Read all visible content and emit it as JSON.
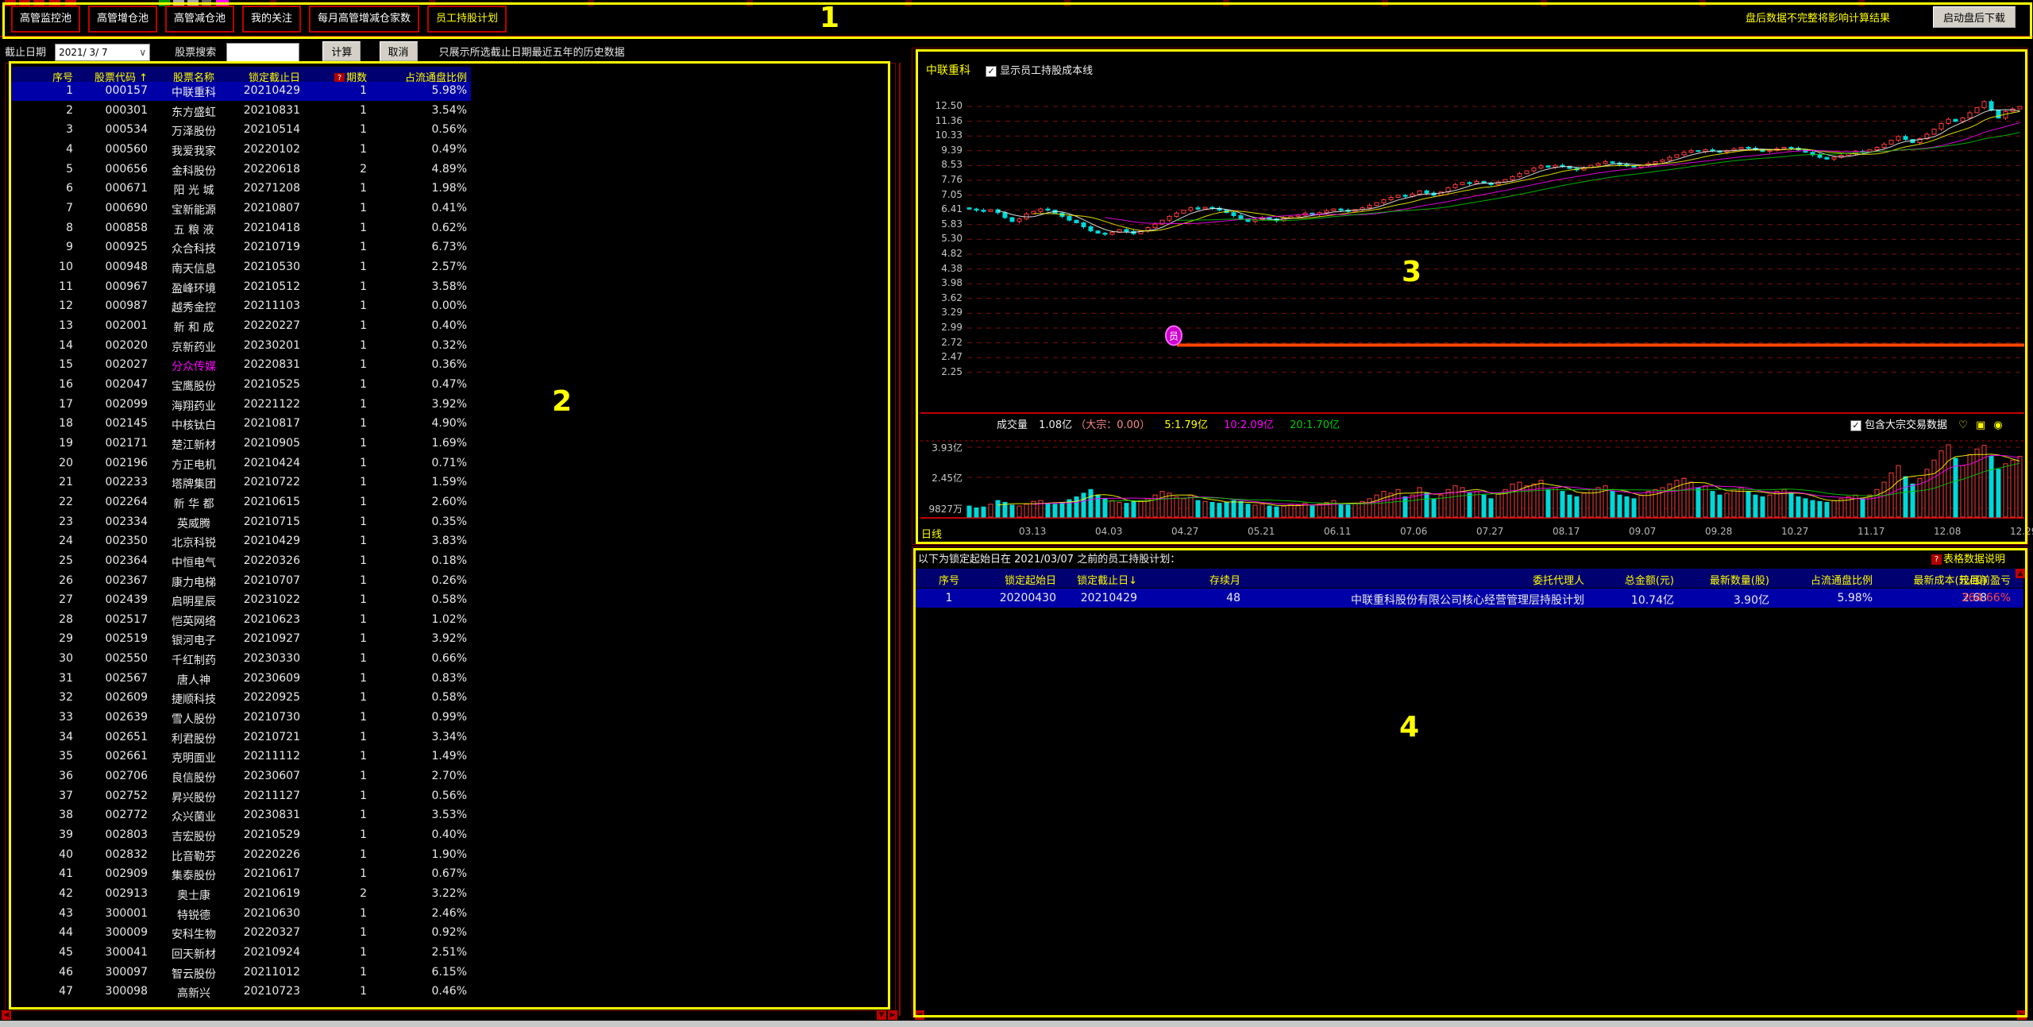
{
  "toolbar": {
    "tabs": [
      "高管监控池",
      "高管增仓池",
      "高管减仓池",
      "我的关注",
      "每月高管增减仓家数",
      "员工持股计划"
    ],
    "active_tab": "员工持股计划",
    "warning": "盘后数据不完整将影响计算结果",
    "download_button": "启动盘后下载"
  },
  "filter_bar": {
    "date_label": "截止日期",
    "date_value": "2021/ 3/ 7",
    "search_label": "股票搜索",
    "search_value": "",
    "calc_button": "计算",
    "cancel_button": "取消",
    "note": "只展示所选截止日期最近五年的历史数据"
  },
  "stock_table": {
    "headers": [
      "序号",
      "股票代码",
      "股票名称",
      "锁定截止日",
      "期数",
      "占流通盘比例"
    ],
    "sort_arrow_col": "股票代码",
    "help_icon_col": "期数",
    "selected_index": 0,
    "magenta_rows": [
      14
    ],
    "rows": [
      [
        "1",
        "000157",
        "中联重科",
        "20210429",
        "1",
        "5.98%"
      ],
      [
        "2",
        "000301",
        "东方盛虹",
        "20210831",
        "1",
        "3.54%"
      ],
      [
        "3",
        "000534",
        "万泽股份",
        "20210514",
        "1",
        "0.56%"
      ],
      [
        "4",
        "000560",
        "我爱我家",
        "20220102",
        "1",
        "0.49%"
      ],
      [
        "5",
        "000656",
        "金科股份",
        "20220618",
        "2",
        "4.89%"
      ],
      [
        "6",
        "000671",
        "阳 光 城",
        "20271208",
        "1",
        "1.98%"
      ],
      [
        "7",
        "000690",
        "宝新能源",
        "20210807",
        "1",
        "0.41%"
      ],
      [
        "8",
        "000858",
        "五 粮 液",
        "20210418",
        "1",
        "0.62%"
      ],
      [
        "9",
        "000925",
        "众合科技",
        "20210719",
        "1",
        "6.73%"
      ],
      [
        "10",
        "000948",
        "南天信息",
        "20210530",
        "1",
        "2.57%"
      ],
      [
        "11",
        "000967",
        "盈峰环境",
        "20210512",
        "1",
        "3.58%"
      ],
      [
        "12",
        "000987",
        "越秀金控",
        "20211103",
        "1",
        "0.00%"
      ],
      [
        "13",
        "002001",
        "新 和 成",
        "20220227",
        "1",
        "0.40%"
      ],
      [
        "14",
        "002020",
        "京新药业",
        "20230201",
        "1",
        "0.32%"
      ],
      [
        "15",
        "002027",
        "分众传媒",
        "20220831",
        "1",
        "0.36%"
      ],
      [
        "16",
        "002047",
        "宝鹰股份",
        "20210525",
        "1",
        "0.47%"
      ],
      [
        "17",
        "002099",
        "海翔药业",
        "20221122",
        "1",
        "3.92%"
      ],
      [
        "18",
        "002145",
        "中核钛白",
        "20210817",
        "1",
        "4.90%"
      ],
      [
        "19",
        "002171",
        "楚江新材",
        "20210905",
        "1",
        "1.69%"
      ],
      [
        "20",
        "002196",
        "方正电机",
        "20210424",
        "1",
        "0.71%"
      ],
      [
        "21",
        "002233",
        "塔牌集团",
        "20210722",
        "1",
        "1.59%"
      ],
      [
        "22",
        "002264",
        "新 华 都",
        "20210615",
        "1",
        "2.60%"
      ],
      [
        "23",
        "002334",
        "英威腾",
        "20210715",
        "1",
        "0.35%"
      ],
      [
        "24",
        "002350",
        "北京科锐",
        "20210429",
        "1",
        "3.83%"
      ],
      [
        "25",
        "002364",
        "中恒电气",
        "20220326",
        "1",
        "0.18%"
      ],
      [
        "26",
        "002367",
        "康力电梯",
        "20210707",
        "1",
        "0.26%"
      ],
      [
        "27",
        "002439",
        "启明星辰",
        "20231022",
        "1",
        "0.58%"
      ],
      [
        "28",
        "002517",
        "恺英网络",
        "20210623",
        "1",
        "1.02%"
      ],
      [
        "29",
        "002519",
        "银河电子",
        "20210927",
        "1",
        "3.92%"
      ],
      [
        "30",
        "002550",
        "千红制药",
        "20230330",
        "1",
        "0.66%"
      ],
      [
        "31",
        "002567",
        "唐人神",
        "20230609",
        "1",
        "0.83%"
      ],
      [
        "32",
        "002609",
        "捷顺科技",
        "20220925",
        "1",
        "0.58%"
      ],
      [
        "33",
        "002639",
        "雪人股份",
        "20210730",
        "1",
        "0.99%"
      ],
      [
        "34",
        "002651",
        "利君股份",
        "20210721",
        "1",
        "3.34%"
      ],
      [
        "35",
        "002661",
        "克明面业",
        "20211112",
        "1",
        "1.49%"
      ],
      [
        "36",
        "002706",
        "良信股份",
        "20230607",
        "1",
        "2.70%"
      ],
      [
        "37",
        "002752",
        "昇兴股份",
        "20211127",
        "1",
        "0.56%"
      ],
      [
        "38",
        "002772",
        "众兴菌业",
        "20230831",
        "1",
        "3.53%"
      ],
      [
        "39",
        "002803",
        "吉宏股份",
        "20210529",
        "1",
        "0.40%"
      ],
      [
        "40",
        "002832",
        "比音勒芬",
        "20220226",
        "1",
        "1.90%"
      ],
      [
        "41",
        "002909",
        "集泰股份",
        "20210617",
        "1",
        "0.67%"
      ],
      [
        "42",
        "002913",
        "奥士康",
        "20210619",
        "2",
        "3.22%"
      ],
      [
        "43",
        "300001",
        "特锐德",
        "20210630",
        "1",
        "2.46%"
      ],
      [
        "44",
        "300009",
        "安科生物",
        "20220327",
        "1",
        "0.92%"
      ],
      [
        "45",
        "300041",
        "回天新材",
        "20210924",
        "1",
        "2.51%"
      ],
      [
        "46",
        "300097",
        "智云股份",
        "20211012",
        "1",
        "6.15%"
      ],
      [
        "47",
        "300098",
        "高新兴",
        "20210723",
        "1",
        "0.46%"
      ]
    ]
  },
  "chart": {
    "title": "中联重科",
    "overlay_checkbox": "显示员工持股成本线",
    "y_labels": [
      "12.50",
      "11.36",
      "10.33",
      "9.39",
      "8.53",
      "7.76",
      "7.05",
      "6.41",
      "5.83",
      "5.30",
      "4.82",
      "4.38",
      "3.98",
      "3.62",
      "3.29",
      "2.99",
      "2.72",
      "2.47",
      "2.25"
    ],
    "volume_row": {
      "label": "成交量",
      "value": "1.08亿",
      "block": "（大宗：0.00）",
      "ma5": "5:1.79亿",
      "ma10": "10:2.09亿",
      "ma20": "20:1.70亿"
    },
    "volume_checkbox": "包含大宗交易数据",
    "vol_labels": [
      "3.93亿",
      "2.45亿",
      "9827万"
    ],
    "period_label": "日线",
    "x_labels": [
      "03.13",
      "04.03",
      "04.27",
      "05.21",
      "06.11",
      "07.06",
      "07.27",
      "08.17",
      "09.07",
      "09.28",
      "10.27",
      "11.17",
      "12.08",
      "12.29"
    ],
    "cost_marker": "员"
  },
  "chart_data": {
    "type": "candlestick",
    "title": "中联重科 日线",
    "y_axis_prices": [
      12.5,
      11.36,
      10.33,
      9.39,
      8.53,
      7.76,
      7.05,
      6.41,
      5.83,
      5.3,
      4.82,
      4.38,
      3.98,
      3.62,
      3.29,
      2.99,
      2.72,
      2.47,
      2.25
    ],
    "cost_line_price": 2.68,
    "volume_max_yi": 3.93,
    "closes": [
      6.45,
      6.4,
      6.35,
      6.42,
      6.3,
      6.1,
      5.95,
      6.05,
      6.25,
      6.35,
      6.45,
      6.4,
      6.28,
      6.15,
      6.0,
      5.9,
      5.75,
      5.6,
      5.52,
      5.48,
      5.55,
      5.65,
      5.58,
      5.5,
      5.6,
      5.72,
      5.85,
      6.0,
      6.15,
      6.28,
      6.4,
      6.5,
      6.45,
      6.52,
      6.48,
      6.4,
      6.3,
      6.18,
      6.05,
      5.95,
      6.02,
      6.1,
      6.05,
      5.98,
      6.08,
      6.15,
      6.2,
      6.28,
      6.22,
      6.3,
      6.38,
      6.45,
      6.4,
      6.35,
      6.42,
      6.5,
      6.6,
      6.72,
      6.85,
      6.95,
      7.05,
      7.0,
      7.1,
      7.25,
      7.15,
      7.05,
      7.2,
      7.4,
      7.55,
      7.65,
      7.6,
      7.7,
      7.62,
      7.55,
      7.68,
      7.8,
      7.95,
      8.1,
      8.25,
      8.4,
      8.52,
      8.45,
      8.55,
      8.48,
      8.38,
      8.3,
      8.42,
      8.55,
      8.65,
      8.75,
      8.68,
      8.6,
      8.52,
      8.45,
      8.55,
      8.65,
      8.75,
      8.85,
      9.0,
      9.15,
      9.3,
      9.4,
      9.35,
      9.45,
      9.38,
      9.3,
      9.4,
      9.5,
      9.6,
      9.55,
      9.45,
      9.35,
      9.42,
      9.52,
      9.6,
      9.55,
      9.45,
      9.3,
      9.15,
      9.0,
      8.9,
      9.0,
      9.12,
      9.25,
      9.35,
      9.3,
      9.45,
      9.6,
      9.8,
      10.05,
      10.3,
      10.1,
      9.9,
      10.15,
      10.45,
      10.8,
      11.2,
      11.5,
      11.35,
      11.6,
      12.0,
      12.4,
      12.9,
      12.2,
      11.6,
      12.1,
      12.3,
      12.5
    ],
    "volumes_yi": [
      0.6,
      0.5,
      0.55,
      0.7,
      0.9,
      0.8,
      0.65,
      0.6,
      0.7,
      0.85,
      0.9,
      0.75,
      0.7,
      0.8,
      0.95,
      1.1,
      1.3,
      1.5,
      1.2,
      1.0,
      0.9,
      0.8,
      0.75,
      0.85,
      0.9,
      1.0,
      1.2,
      1.4,
      1.3,
      1.1,
      1.0,
      1.2,
      0.9,
      0.85,
      0.8,
      0.75,
      0.8,
      0.9,
      0.85,
      0.7,
      0.65,
      0.7,
      0.6,
      0.55,
      0.6,
      0.7,
      0.65,
      0.75,
      0.6,
      0.7,
      0.8,
      0.9,
      0.7,
      0.65,
      0.75,
      0.85,
      1.0,
      1.2,
      1.4,
      1.3,
      1.5,
      1.1,
      1.2,
      1.6,
      1.3,
      1.0,
      1.2,
      1.5,
      1.7,
      1.6,
      1.3,
      1.4,
      1.2,
      1.0,
      1.3,
      1.5,
      1.8,
      1.9,
      1.7,
      1.8,
      2.0,
      1.5,
      1.6,
      1.4,
      1.2,
      1.1,
      1.3,
      1.5,
      1.6,
      1.7,
      1.4,
      1.2,
      1.1,
      1.0,
      1.2,
      1.4,
      1.5,
      1.6,
      1.8,
      2.0,
      2.1,
      1.9,
      1.6,
      1.7,
      1.4,
      1.2,
      1.3,
      1.5,
      1.6,
      1.4,
      1.2,
      1.1,
      1.2,
      1.4,
      1.5,
      1.3,
      1.1,
      1.0,
      0.9,
      0.85,
      0.8,
      0.9,
      1.0,
      1.1,
      1.2,
      1.0,
      1.2,
      1.5,
      1.9,
      2.4,
      2.8,
      2.2,
      1.8,
      2.1,
      2.6,
      3.1,
      3.6,
      3.93,
      3.2,
      2.8,
      3.4,
      3.7,
      3.9,
      3.3,
      2.6,
      2.9,
      3.1,
      3.3
    ]
  },
  "plan_panel": {
    "title": "以下为锁定起始日在 2021/03/07 之前的员工持股计划：",
    "help_link": "表格数据说明",
    "headers": [
      "序号",
      "锁定起始日",
      "锁定截止日↓",
      "存续月",
      "委托代理人",
      "总金额(元)",
      "最新数量(股)",
      "占流通盘比例",
      "最新成本(元/股)",
      "较目前盈亏"
    ],
    "row": [
      "1",
      "20200430",
      "20210429",
      "48",
      "中联重科股份有限公司核心经营管理层持股计划",
      "10.74亿",
      "3.90亿",
      "5.98%",
      "2.68",
      "364.66%"
    ]
  },
  "annotations": {
    "n1": "1",
    "n2": "2",
    "n3": "3",
    "n4": "4"
  },
  "colors": {
    "accent_yellow": "#ffff00",
    "up_red": "#ff3b3b",
    "down_cyan": "#00d8d8",
    "cost_line": "#ff4500",
    "header_bg": "#000070",
    "select_bg": "#0000a8",
    "magenta": "#ff00ff",
    "loss_gain_red": "#ff4444"
  }
}
